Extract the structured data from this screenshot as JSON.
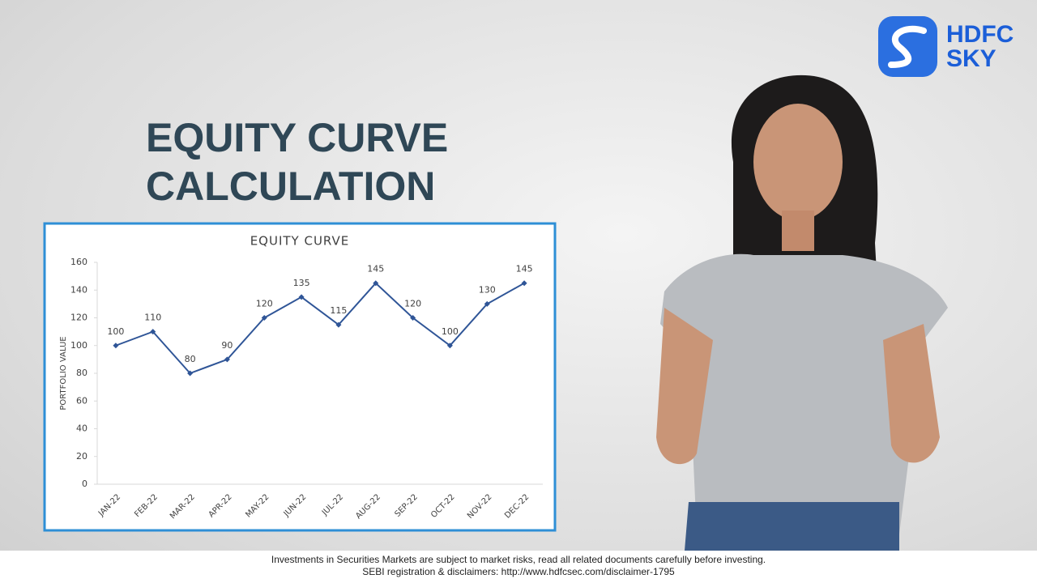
{
  "logo": {
    "line1": "HDFC",
    "line2": "SKY"
  },
  "heading": {
    "line1": "EQUITY CURVE",
    "line2": "CALCULATION"
  },
  "footer": {
    "line1": "Investments in Securities Markets are subject to market risks, read all related documents carefully before investing.",
    "line2": "SEBI registration & disclaimers: http://www.hdfcsec.com/disclaimer-1795"
  },
  "chart_data": {
    "type": "line",
    "title": "EQUITY CURVE",
    "y_label": "PORTFOLIO VALUE",
    "categories": [
      "JAN-22",
      "FEB-22",
      "MAR-22",
      "APR-22",
      "MAY-22",
      "JUN-22",
      "JUL-22",
      "AUG-22",
      "SEP-22",
      "OCT-22",
      "NOV-22",
      "DEC-22"
    ],
    "values": [
      100,
      110,
      80,
      90,
      120,
      135,
      115,
      145,
      120,
      100,
      130,
      145
    ],
    "color": "#2f5597",
    "ylim": [
      0,
      160
    ],
    "yticks": [
      0,
      20,
      40,
      60,
      80,
      100,
      120,
      140,
      160
    ],
    "grid": false
  }
}
